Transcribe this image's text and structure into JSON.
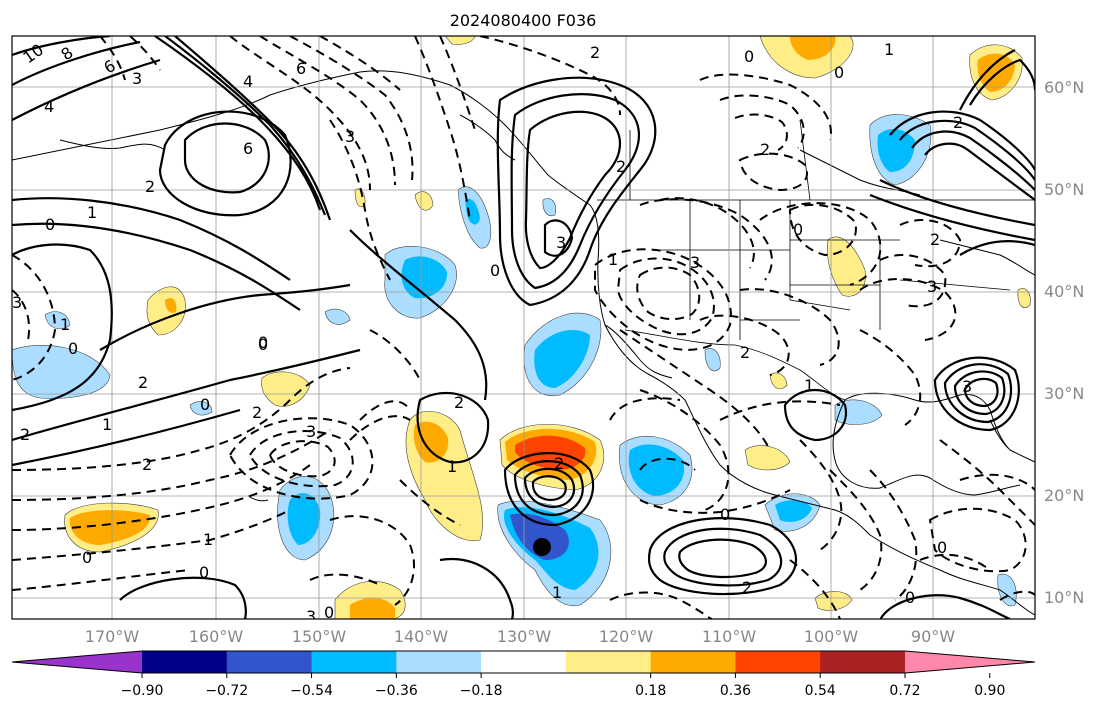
{
  "title": "2024080400 F036",
  "lat_labels": [
    "60°N",
    "50°N",
    "40°N",
    "30°N",
    "20°N",
    "10°N"
  ],
  "lon_labels": [
    "170°W",
    "160°W",
    "150°W",
    "140°W",
    "130°W",
    "120°W",
    "110°W",
    "100°W",
    "90°W"
  ],
  "colorbar": {
    "colors": [
      "#9933cc",
      "#000088",
      "#3355cc",
      "#00bbff",
      "#aaddff",
      "#ffffff",
      "#ffee88",
      "#ffaa00",
      "#ff4400",
      "#aa2222",
      "#ff88aa"
    ],
    "tick_labels": [
      "−0.90",
      "−0.72",
      "−0.54",
      "−0.36",
      "−0.18",
      "0.18",
      "0.36",
      "0.54",
      "0.72",
      "0.90"
    ]
  },
  "contour_labels": {
    "l1": "10",
    "l2": "8",
    "l3": "6",
    "l4": "4",
    "l5": "6",
    "l6": "3",
    "l7": "6",
    "l8": "1",
    "l9": "0",
    "l10": "4",
    "l11": "3",
    "l12": "2",
    "l13": "1",
    "l14": "0",
    "l15": "3",
    "l16": "0",
    "l17": "2",
    "l18": "0",
    "l19": "2",
    "l20": "0",
    "l21": "1",
    "l22": "2",
    "l23": "3",
    "l24": "2",
    "l25": "1",
    "l26": "0",
    "l27": "1",
    "l28": "2",
    "l29": "2",
    "l30": "0",
    "l31": "0",
    "l32": "2",
    "l33": "3",
    "l34": "3",
    "l35": "1",
    "l36": "2",
    "l37": "0",
    "l38": "2",
    "l39": "1",
    "l40": "0",
    "l41": "3",
    "l42": "3",
    "l43": "3",
    "l44": "1",
    "l45": "0",
    "l46": "2",
    "l47": "0",
    "l48": "0",
    "l49": "1",
    "l50": "2",
    "l51": "0",
    "l52": "2",
    "l53": "0",
    "l54": "2"
  },
  "marker": {
    "name": "storm-center"
  }
}
